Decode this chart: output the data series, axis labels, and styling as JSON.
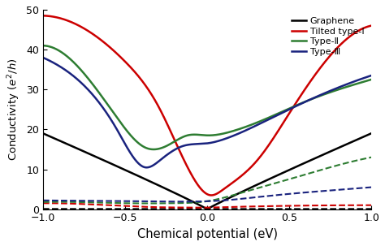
{
  "title": "",
  "xlabel": "Chemical potential (eV)",
  "ylabel": "Conductivity ($e^2/h$)",
  "xlim": [
    -1.0,
    1.0
  ],
  "ylim": [
    0,
    50
  ],
  "yticks": [
    0,
    10,
    20,
    30,
    40,
    50
  ],
  "xticks": [
    -1.0,
    -0.5,
    0.0,
    0.5,
    1.0
  ],
  "legend_labels": [
    "Graphene",
    "Tilted type-Ⅰ",
    "Type-Ⅱ",
    "Type-Ⅲ"
  ],
  "colors": [
    "black",
    "#cc0000",
    "#2e7d32",
    "#1a237e"
  ],
  "background_color": "#ffffff"
}
